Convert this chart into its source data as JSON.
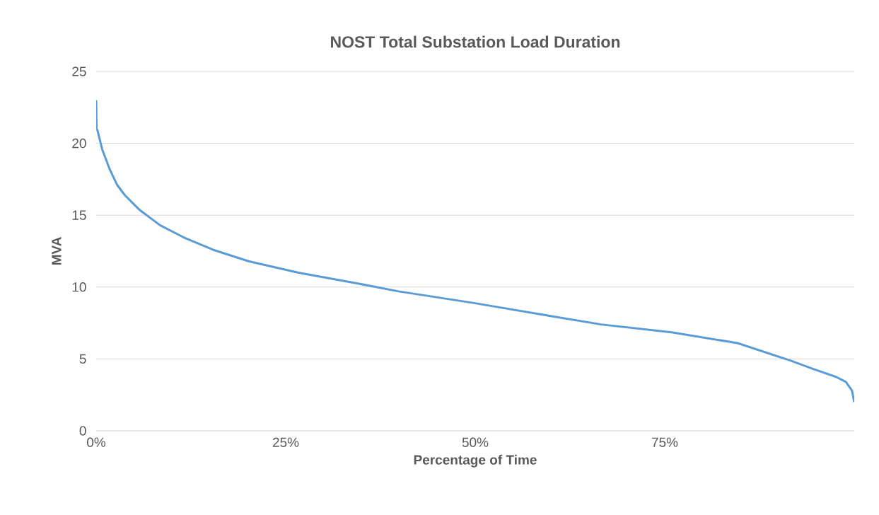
{
  "chart_data": {
    "type": "line",
    "title": "NOST Total Substation Load Duration",
    "xlabel": "Percentage of Time",
    "ylabel": "MVA",
    "x": [
      0,
      0.05,
      0.18,
      0.78,
      1.78,
      2.77,
      3.77,
      5.76,
      8.43,
      11.75,
      15.4,
      20.1,
      26.7,
      34.0,
      39.9,
      49.7,
      59.8,
      66.6,
      75.9,
      84.6,
      91.5,
      94.6,
      97.6,
      98.9,
      99.7,
      100
    ],
    "series": [
      {
        "color": "#5b9bd5",
        "values": [
          23.0,
          21.0,
          20.9,
          19.6,
          18.2,
          17.1,
          16.4,
          15.35,
          14.3,
          13.4,
          12.6,
          11.8,
          11.0,
          10.3,
          9.7,
          8.9,
          8.0,
          7.4,
          6.85,
          6.1,
          4.9,
          4.3,
          3.75,
          3.4,
          2.8,
          2.0
        ]
      }
    ],
    "xlim": [
      0,
      100
    ],
    "ylim": [
      0,
      25
    ],
    "xticks": [
      {
        "value": 0,
        "label": "0%"
      },
      {
        "value": 25,
        "label": "25%"
      },
      {
        "value": 50,
        "label": "50%"
      },
      {
        "value": 75,
        "label": "75%"
      }
    ],
    "yticks": [
      0,
      5,
      10,
      15,
      20,
      25
    ],
    "grid": "y",
    "marker": "none",
    "line_style": "solid"
  }
}
